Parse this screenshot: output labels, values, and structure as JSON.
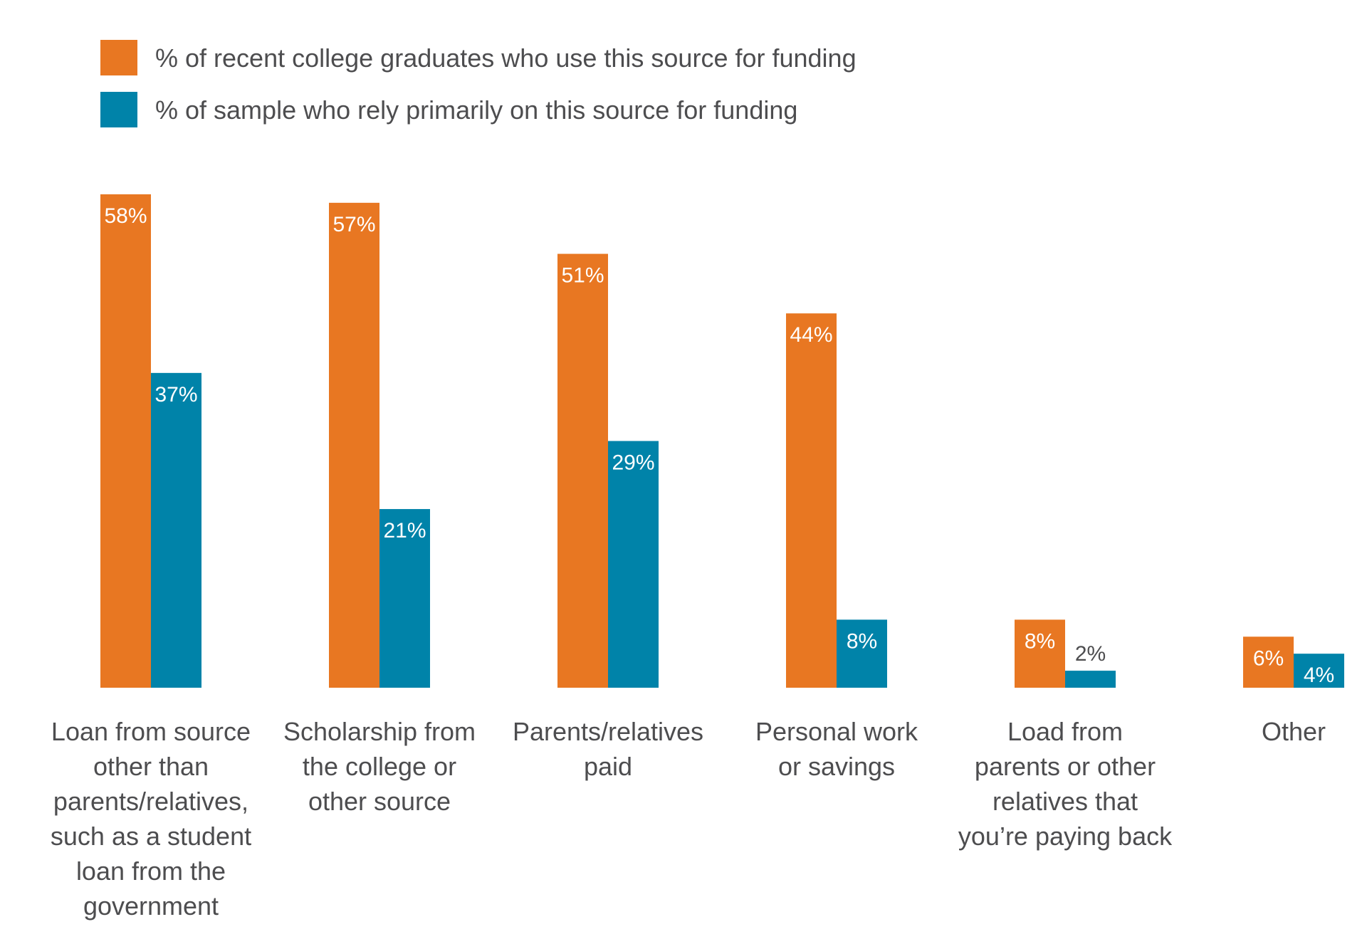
{
  "chart_data": {
    "type": "bar",
    "title": "",
    "xlabel": "",
    "ylabel": "",
    "ylim": [
      0,
      58
    ],
    "grid": false,
    "legend_position": "top-left",
    "colors": {
      "series_1": "#E87722",
      "series_2": "#0083A9",
      "outside_label": "#4d4d4f",
      "inside_label": "#ffffff"
    },
    "categories": [
      [
        "Loan from source",
        "other than",
        "parents/relatives,",
        "such as a student",
        "loan from the",
        "government"
      ],
      [
        "Scholarship from",
        "the college or",
        "other source"
      ],
      [
        "Parents/relatives",
        "paid"
      ],
      [
        "Personal work",
        "or savings"
      ],
      [
        "Load from",
        "parents or other",
        "relatives that",
        "you’re paying back"
      ],
      [
        "Other"
      ]
    ],
    "series": [
      {
        "name": "% of recent college graduates who use this source for funding",
        "values": [
          58,
          57,
          51,
          44,
          8,
          6
        ],
        "labels": [
          "58%",
          "57%",
          "51%",
          "44%",
          "8%",
          "6%"
        ]
      },
      {
        "name": "% of sample who rely primarily on this source for funding",
        "values": [
          37,
          21,
          29,
          8,
          2,
          4
        ],
        "labels": [
          "37%",
          "21%",
          "29%",
          "8%",
          "2%",
          "4%"
        ]
      }
    ]
  }
}
